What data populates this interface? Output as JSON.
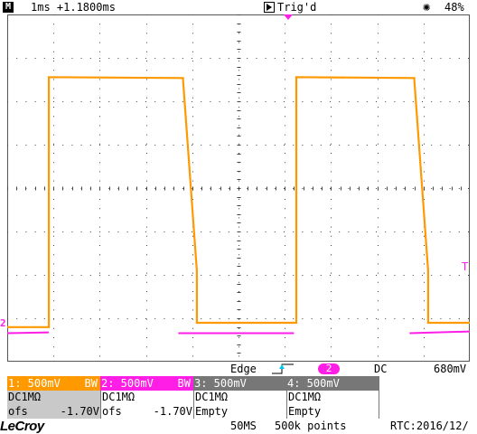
{
  "status_bar": {
    "menu_icon": "M",
    "timebase": "1ms +1.1800ms",
    "run_icon": "play-icon",
    "trigger_status": "Trig'd",
    "brightness_icon": "sun-icon",
    "brightness": "48%"
  },
  "markers": {
    "ch2_ground": "2",
    "trigger_level": "T",
    "trigger_position": "trigger-position-icon"
  },
  "trigger": {
    "type": "Edge",
    "slope_icon": "rising-edge-icon",
    "source": "2",
    "coupling": "DC",
    "level": "680mV"
  },
  "channels": [
    {
      "label": "1: 500mV",
      "bw": "BW",
      "coupling": "DC1MΩ",
      "ofs_label": "ofs",
      "ofs_value": "-1.70V",
      "color": "#ff9900"
    },
    {
      "label": "2: 500mV",
      "bw": "BW",
      "coupling": "DC1MΩ",
      "ofs_label": "ofs",
      "ofs_value": "-1.70V",
      "color": "#ff1ee6"
    },
    {
      "label": "3: 500mV",
      "coupling": "DC1MΩ",
      "status": "Empty"
    },
    {
      "label": "4: 500mV",
      "coupling": "DC1MΩ",
      "status": "Empty"
    }
  ],
  "bottom_bar": {
    "brand": "LeCroy",
    "sample_rate": "50MS",
    "points": "500k points",
    "rtc": "RTC:2016/12/"
  },
  "chart_data": {
    "type": "line",
    "x_unit": "ms",
    "y_unit": "V",
    "x_div": 1,
    "y_div": 0.5,
    "divisions": {
      "x": 10,
      "y": 8
    },
    "grid": true,
    "series": [
      {
        "color": "#ff9900",
        "x": [
          -5.0,
          -4.1,
          -4.1,
          -1.2,
          -1.2,
          -0.9,
          -0.9,
          -0.9,
          0.6,
          1.25,
          1.25,
          3.8,
          3.8,
          4.1,
          4.1,
          4.1,
          5.0
        ],
        "y": [
          -0.05,
          -0.05,
          2.83,
          2.82,
          2.8,
          0.6,
          0.15,
          0.0,
          0.0,
          0.0,
          2.83,
          2.82,
          2.8,
          0.6,
          0.15,
          0.0,
          0.0
        ]
      },
      {
        "color": "#ff1ee6",
        "x": [
          -5.0,
          -4.1,
          -4.1,
          -1.3,
          -1.3,
          1.2,
          1.2,
          3.7,
          3.7,
          5.0
        ],
        "y": [
          -0.12,
          -0.11,
          null,
          null,
          -0.12,
          -0.12,
          null,
          null,
          -0.12,
          -0.1
        ]
      }
    ]
  }
}
